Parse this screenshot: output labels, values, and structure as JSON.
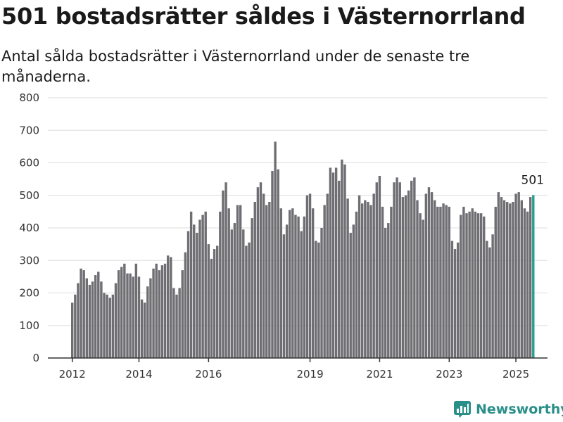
{
  "title": "501 bostadsrätter såldes i Västernorrland",
  "subtitle": "Antal sålda bostadsrätter i Västernorrland under de senaste tre månaderna.",
  "brand": "Newsworthy",
  "colors": {
    "bar": "#6e6e73",
    "highlight": "#2a9d8f",
    "brand": "#2a8f89"
  },
  "chart_data": {
    "type": "bar",
    "ylim": [
      0,
      800
    ],
    "yticks": [
      0,
      100,
      200,
      300,
      400,
      500,
      600,
      700,
      800
    ],
    "xticks": [
      {
        "label": "2012",
        "index": 0
      },
      {
        "label": "2014",
        "index": 23
      },
      {
        "label": "2016",
        "index": 47
      },
      {
        "label": "2019",
        "index": 82
      },
      {
        "label": "2021",
        "index": 106
      },
      {
        "label": "2023",
        "index": 130
      },
      {
        "label": "2025",
        "index": 153
      }
    ],
    "highlight_label": "501",
    "values": [
      170,
      195,
      230,
      275,
      270,
      245,
      225,
      235,
      255,
      265,
      235,
      200,
      195,
      185,
      195,
      230,
      270,
      280,
      290,
      260,
      260,
      250,
      290,
      250,
      180,
      170,
      220,
      245,
      275,
      290,
      270,
      285,
      290,
      315,
      310,
      215,
      195,
      215,
      270,
      325,
      390,
      450,
      410,
      385,
      425,
      440,
      450,
      350,
      305,
      335,
      345,
      450,
      515,
      540,
      460,
      395,
      415,
      470,
      470,
      395,
      345,
      355,
      430,
      480,
      525,
      540,
      505,
      470,
      480,
      575,
      665,
      580,
      460,
      380,
      410,
      455,
      460,
      440,
      435,
      390,
      435,
      500,
      505,
      460,
      360,
      355,
      400,
      470,
      505,
      585,
      570,
      585,
      545,
      610,
      595,
      490,
      385,
      410,
      450,
      500,
      475,
      485,
      480,
      470,
      505,
      540,
      560,
      465,
      400,
      415,
      465,
      540,
      555,
      540,
      495,
      500,
      515,
      545,
      555,
      485,
      445,
      425,
      505,
      525,
      510,
      485,
      465,
      465,
      475,
      470,
      465,
      360,
      335,
      355,
      440,
      465,
      445,
      450,
      460,
      450,
      445,
      445,
      435,
      360,
      340,
      380,
      465,
      510,
      495,
      485,
      480,
      475,
      480,
      505,
      510,
      485,
      460,
      450,
      495,
      501
    ]
  }
}
